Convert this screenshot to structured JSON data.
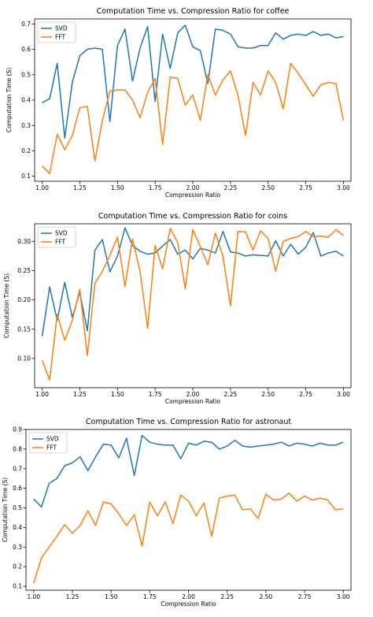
{
  "colors": {
    "svd": "#1f77b4",
    "fft": "#ff7f0e"
  },
  "chart_data": [
    {
      "type": "line",
      "title": "Computation Time vs. Compression Ratio for coffee",
      "xlabel": "Compression Ratio",
      "ylabel": "Computation Time (S)",
      "xlim": [
        0.95,
        3.05
      ],
      "ylim": [
        0.08,
        0.72
      ],
      "xticks": [
        1.0,
        1.25,
        1.5,
        1.75,
        2.0,
        2.25,
        2.5,
        2.75,
        3.0
      ],
      "xtick_labels": [
        "1.00",
        "1.25",
        "1.50",
        "1.75",
        "2.00",
        "2.25",
        "2.50",
        "2.75",
        "3.00"
      ],
      "yticks": [
        0.1,
        0.2,
        0.3,
        0.4,
        0.5,
        0.6,
        0.7
      ],
      "ytick_labels": [
        "0.1",
        "0.2",
        "0.3",
        "0.4",
        "0.5",
        "0.6",
        "0.7"
      ],
      "legend": "upper-left",
      "x": [
        1.0,
        1.05,
        1.1,
        1.15,
        1.2,
        1.25,
        1.3,
        1.35,
        1.4,
        1.45,
        1.5,
        1.55,
        1.6,
        1.65,
        1.7,
        1.75,
        1.8,
        1.85,
        1.9,
        1.95,
        2.0,
        2.05,
        2.1,
        2.15,
        2.2,
        2.25,
        2.3,
        2.35,
        2.4,
        2.45,
        2.5,
        2.55,
        2.6,
        2.65,
        2.7,
        2.75,
        2.8,
        2.85,
        2.9,
        2.95,
        3.0
      ],
      "series": [
        {
          "name": "SVD",
          "values": [
            0.39,
            0.405,
            0.545,
            0.25,
            0.47,
            0.575,
            0.6,
            0.605,
            0.6,
            0.315,
            0.615,
            0.68,
            0.475,
            0.605,
            0.69,
            0.395,
            0.66,
            0.525,
            0.665,
            0.695,
            0.61,
            0.595,
            0.465,
            0.68,
            0.675,
            0.66,
            0.61,
            0.605,
            0.605,
            0.615,
            0.615,
            0.665,
            0.64,
            0.655,
            0.66,
            0.655,
            0.67,
            0.655,
            0.66,
            0.645,
            0.65
          ]
        },
        {
          "name": "FFT",
          "values": [
            0.14,
            0.11,
            0.265,
            0.205,
            0.26,
            0.37,
            0.375,
            0.16,
            0.32,
            0.435,
            0.44,
            0.44,
            0.4,
            0.33,
            0.43,
            0.485,
            0.225,
            0.49,
            0.485,
            0.38,
            0.42,
            0.32,
            0.5,
            0.42,
            0.48,
            0.515,
            0.42,
            0.26,
            0.47,
            0.42,
            0.515,
            0.47,
            0.365,
            0.545,
            0.505,
            0.46,
            0.415,
            0.46,
            0.47,
            0.465,
            0.32
          ]
        }
      ]
    },
    {
      "type": "line",
      "title": "Computation Time vs. Compression Ratio for coins",
      "xlabel": "Compression Ratio",
      "ylabel": "Computation Time (S)",
      "xlim": [
        0.95,
        3.05
      ],
      "ylim": [
        0.05,
        0.33
      ],
      "xticks": [
        1.0,
        1.25,
        1.5,
        1.75,
        2.0,
        2.25,
        2.5,
        2.75,
        3.0
      ],
      "xtick_labels": [
        "1.00",
        "1.25",
        "1.50",
        "1.75",
        "2.00",
        "2.25",
        "2.50",
        "2.75",
        "3.00"
      ],
      "yticks": [
        0.1,
        0.15,
        0.2,
        0.25,
        0.3
      ],
      "ytick_labels": [
        "0.10",
        "0.15",
        "0.20",
        "0.25",
        "0.30"
      ],
      "legend": "upper-left",
      "x": [
        1.0,
        1.05,
        1.1,
        1.15,
        1.2,
        1.25,
        1.3,
        1.35,
        1.4,
        1.45,
        1.5,
        1.55,
        1.6,
        1.65,
        1.7,
        1.75,
        1.8,
        1.85,
        1.9,
        1.95,
        2.0,
        2.05,
        2.1,
        2.15,
        2.2,
        2.25,
        2.3,
        2.35,
        2.4,
        2.45,
        2.5,
        2.55,
        2.6,
        2.65,
        2.7,
        2.75,
        2.8,
        2.85,
        2.9,
        2.95,
        3.0
      ],
      "series": [
        {
          "name": "SVD",
          "values": [
            0.138,
            0.222,
            0.165,
            0.23,
            0.17,
            0.213,
            0.147,
            0.285,
            0.303,
            0.248,
            0.275,
            0.323,
            0.293,
            0.283,
            0.278,
            0.28,
            0.292,
            0.303,
            0.278,
            0.285,
            0.27,
            0.288,
            0.285,
            0.28,
            0.317,
            0.282,
            0.28,
            0.275,
            0.277,
            0.276,
            0.275,
            0.301,
            0.275,
            0.295,
            0.278,
            0.29,
            0.315,
            0.275,
            0.28,
            0.283,
            0.275
          ]
        },
        {
          "name": "FFT",
          "values": [
            0.097,
            0.063,
            0.175,
            0.131,
            0.165,
            0.218,
            0.105,
            0.228,
            0.249,
            0.276,
            0.307,
            0.223,
            0.304,
            0.249,
            0.151,
            0.293,
            0.253,
            0.322,
            0.298,
            0.219,
            0.32,
            0.291,
            0.26,
            0.314,
            0.275,
            0.19,
            0.317,
            0.316,
            0.285,
            0.318,
            0.305,
            0.249,
            0.3,
            0.305,
            0.308,
            0.317,
            0.308,
            0.309,
            0.307,
            0.32,
            0.31
          ]
        }
      ]
    },
    {
      "type": "line",
      "title": "Computation Time vs. Compression Ratio for astronaut",
      "xlabel": "Compression Ratio",
      "ylabel": "Computation Time (S)",
      "xlim": [
        0.95,
        3.05
      ],
      "ylim": [
        0.08,
        0.9
      ],
      "xticks": [
        1.0,
        1.25,
        1.5,
        1.75,
        2.0,
        2.25,
        2.5,
        2.75,
        3.0
      ],
      "xtick_labels": [
        "1.00",
        "1.25",
        "1.50",
        "1.75",
        "2.00",
        "2.25",
        "2.50",
        "2.75",
        "3.00"
      ],
      "yticks": [
        0.1,
        0.2,
        0.3,
        0.4,
        0.5,
        0.6,
        0.7,
        0.8,
        0.9
      ],
      "ytick_labels": [
        "0.1",
        "0.2",
        "0.3",
        "0.4",
        "0.5",
        "0.6",
        "0.7",
        "0.8",
        "0.9"
      ],
      "legend": "upper-left",
      "x": [
        1.0,
        1.05,
        1.1,
        1.15,
        1.2,
        1.25,
        1.3,
        1.35,
        1.4,
        1.45,
        1.5,
        1.55,
        1.6,
        1.65,
        1.7,
        1.75,
        1.8,
        1.85,
        1.9,
        1.95,
        2.0,
        2.05,
        2.1,
        2.15,
        2.2,
        2.25,
        2.3,
        2.35,
        2.4,
        2.45,
        2.5,
        2.55,
        2.6,
        2.65,
        2.7,
        2.75,
        2.8,
        2.85,
        2.9,
        2.95,
        3.0
      ],
      "series": [
        {
          "name": "SVD",
          "values": [
            0.545,
            0.505,
            0.625,
            0.65,
            0.715,
            0.73,
            0.76,
            0.69,
            0.76,
            0.825,
            0.82,
            0.755,
            0.855,
            0.665,
            0.87,
            0.835,
            0.825,
            0.82,
            0.82,
            0.75,
            0.83,
            0.82,
            0.84,
            0.835,
            0.8,
            0.815,
            0.845,
            0.815,
            0.81,
            0.815,
            0.82,
            0.825,
            0.835,
            0.815,
            0.83,
            0.825,
            0.815,
            0.83,
            0.82,
            0.82,
            0.835
          ]
        },
        {
          "name": "FFT",
          "values": [
            0.115,
            0.245,
            0.3,
            0.355,
            0.415,
            0.37,
            0.41,
            0.485,
            0.41,
            0.53,
            0.52,
            0.47,
            0.41,
            0.465,
            0.305,
            0.53,
            0.46,
            0.53,
            0.42,
            0.565,
            0.535,
            0.46,
            0.525,
            0.355,
            0.55,
            0.56,
            0.565,
            0.49,
            0.495,
            0.445,
            0.57,
            0.54,
            0.545,
            0.575,
            0.535,
            0.56,
            0.54,
            0.55,
            0.54,
            0.49,
            0.495
          ]
        }
      ]
    }
  ]
}
